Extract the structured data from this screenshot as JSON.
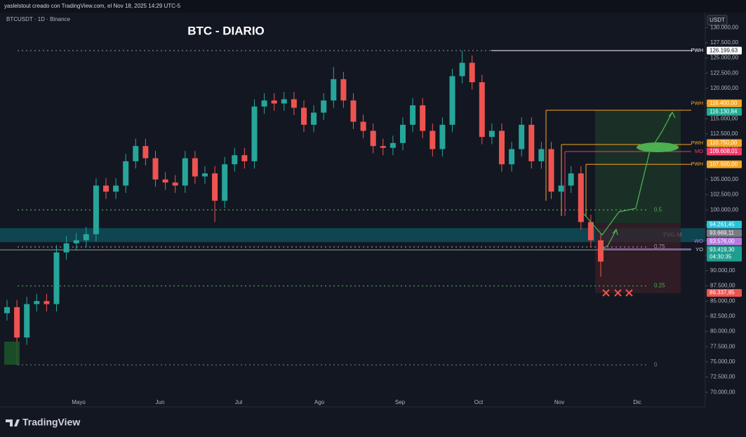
{
  "header": {
    "caption": "yaslelstout creado con TradingView.com, el Nov 18, 2025 14:29 UTC-5",
    "symbol": "BTCUSDT · 1D · Binance",
    "currency": "USDT",
    "brand": "TradingView"
  },
  "chart_data": {
    "type": "candlestick",
    "title": "BTC - DIARIO",
    "x_labels": [
      "Mayo",
      "Jun",
      "Jul",
      "Ago",
      "Sep",
      "Oct",
      "Nov",
      "Dic"
    ],
    "up_color": "#26a69a",
    "down_color": "#ef5350",
    "open": [
      83000,
      84000,
      79000,
      84500,
      85000,
      84500,
      93000,
      94500,
      95000,
      96000,
      104000,
      103000,
      104000,
      108000,
      110500,
      108500,
      105000,
      104500,
      104000,
      108500,
      105500,
      106000,
      101500,
      107500,
      109000,
      108000,
      117000,
      118000,
      117500,
      118200,
      116800,
      114000,
      116000,
      118000,
      121500,
      118000,
      114500,
      113000,
      110500,
      110200,
      111000,
      114000,
      117200,
      113000,
      110000,
      114000,
      122000,
      124200,
      121000,
      112000,
      113000,
      107500,
      110000,
      114000,
      108000,
      110000,
      103000,
      104000,
      106000,
      98000,
      95000
    ],
    "high": [
      85200,
      85200,
      85700,
      86200,
      86200,
      94200,
      95700,
      96200,
      97200,
      105200,
      105200,
      105200,
      109200,
      111700,
      111700,
      109700,
      106200,
      105700,
      109700,
      109700,
      107200,
      107200,
      108700,
      110200,
      110200,
      118200,
      119200,
      119200,
      119400,
      119400,
      118000,
      117200,
      119200,
      123500,
      122700,
      119200,
      115700,
      114200,
      111700,
      112200,
      115200,
      118400,
      118400,
      114200,
      115200,
      123200,
      126200,
      125400,
      122200,
      114200,
      114200,
      111200,
      115200,
      115200,
      111200,
      111200,
      105200,
      107200,
      107200,
      99200,
      96200
    ],
    "low": [
      81800,
      74500,
      77800,
      83300,
      83300,
      83300,
      91800,
      93300,
      93800,
      94800,
      101800,
      101800,
      102800,
      106800,
      107300,
      103800,
      103300,
      102800,
      102800,
      104300,
      104300,
      98000,
      100300,
      106300,
      106800,
      106800,
      115800,
      116300,
      116300,
      115600,
      112800,
      112800,
      114800,
      116800,
      116800,
      113300,
      111800,
      109300,
      109000,
      109000,
      109800,
      112800,
      111800,
      108800,
      108800,
      112800,
      120800,
      119800,
      110800,
      110800,
      106300,
      106300,
      108800,
      106800,
      106800,
      101800,
      101800,
      102800,
      96800,
      93800,
      89000
    ],
    "close": [
      84000,
      79000,
      84500,
      85000,
      84500,
      93000,
      94500,
      95000,
      96000,
      104000,
      103000,
      104000,
      108000,
      110500,
      108500,
      105000,
      104500,
      104000,
      108500,
      105500,
      106000,
      101500,
      107500,
      109000,
      108000,
      117000,
      118000,
      117500,
      118200,
      116800,
      114000,
      116000,
      118000,
      121500,
      118000,
      114500,
      113000,
      110500,
      110200,
      111000,
      114000,
      117200,
      113000,
      110000,
      114000,
      122000,
      124200,
      121000,
      112000,
      113000,
      107500,
      110000,
      114000,
      108000,
      110000,
      103000,
      104000,
      106000,
      98000,
      95000,
      91500
    ],
    "ylim": [
      67600,
      132450
    ],
    "yticks": [
      {
        "value": 70000,
        "label": "70.000,00"
      },
      {
        "value": 72500,
        "label": "72.500,00"
      },
      {
        "value": 75000,
        "label": "75.000,00"
      },
      {
        "value": 77500,
        "label": "77.500,00"
      },
      {
        "value": 80000,
        "label": "80.000,00"
      },
      {
        "value": 82500,
        "label": "82.500,00"
      },
      {
        "value": 85000,
        "label": "85.000,00"
      },
      {
        "value": 87500,
        "label": "87.500,00"
      },
      {
        "value": 90000,
        "label": "90.000,00"
      },
      {
        "value": 92500,
        "label": "92.500,00"
      },
      {
        "value": 95000,
        "label": "95.000,00"
      },
      {
        "value": 97500,
        "label": "97.500,00"
      },
      {
        "value": 100000,
        "label": "100.000,00"
      },
      {
        "value": 102500,
        "label": "102.500,00"
      },
      {
        "value": 105000,
        "label": "105.000,00"
      },
      {
        "value": 107500,
        "label": "107.500,00"
      },
      {
        "value": 110000,
        "label": "110.000,00"
      },
      {
        "value": 112500,
        "label": "112.500,00"
      },
      {
        "value": 115000,
        "label": "115.000,00"
      },
      {
        "value": 117500,
        "label": "117.500,00"
      },
      {
        "value": 120000,
        "label": "120.000,00"
      },
      {
        "value": 122500,
        "label": "122.500,00"
      },
      {
        "value": 125000,
        "label": "125.000,00"
      },
      {
        "value": 127500,
        "label": "127.500,00"
      },
      {
        "value": 130000,
        "label": "130.000,00"
      }
    ],
    "levels": [
      {
        "label": "PWH",
        "value": 126199.63,
        "value_label": "126.199,63",
        "color": "#ffffff"
      },
      {
        "label": "PWH",
        "value": 116400,
        "value_label": "116.400,00",
        "color": "#f5a623"
      },
      {
        "value": 116130.84,
        "value_label": "116.130,84",
        "color": "#22ab94"
      },
      {
        "label": "PWH",
        "value": 110750,
        "value_label": "110.750,00",
        "color": "#f5a623"
      },
      {
        "label": "MO",
        "value": 109608.01,
        "value_label": "109.608,01",
        "color": "#f23b6d"
      },
      {
        "label": "PWH",
        "value": 107500,
        "value_label": "107.500,00",
        "color": "#f5a623"
      },
      {
        "value": 94261.45,
        "value_label": "94.261,45",
        "color": "#26c6da"
      },
      {
        "value": 93669.11,
        "value_label": "93.669,11",
        "color": "#787b86"
      },
      {
        "label": "WO",
        "value": 93576,
        "value_label": "93.576,00",
        "color": "#b67ae0"
      },
      {
        "label": "YO",
        "value": 93419.3,
        "value_label": "93.419,30",
        "color": "#1f9e8f",
        "countdown": "04:30:35"
      },
      {
        "value": 86337.85,
        "value_label": "86.337,85",
        "color": "#ef5350"
      }
    ],
    "fib": [
      {
        "label": "0.5",
        "value": 100000,
        "color": "#4caf50"
      },
      {
        "label": "0.75",
        "value": 93900,
        "color": "#9598a1"
      },
      {
        "label": "0.25",
        "value": 87500,
        "color": "#4caf50"
      },
      {
        "label": "0",
        "value": 74500,
        "color": "#787b86"
      }
    ],
    "zones": [
      {
        "label": "FVG-M",
        "top": 97000,
        "bottom": 94700,
        "color": "#0e5560"
      },
      {
        "top": 116400,
        "bottom": 97800,
        "color": "#1d3a2a"
      },
      {
        "top": 97800,
        "bottom": 86300,
        "color": "#3a1f27"
      }
    ]
  }
}
